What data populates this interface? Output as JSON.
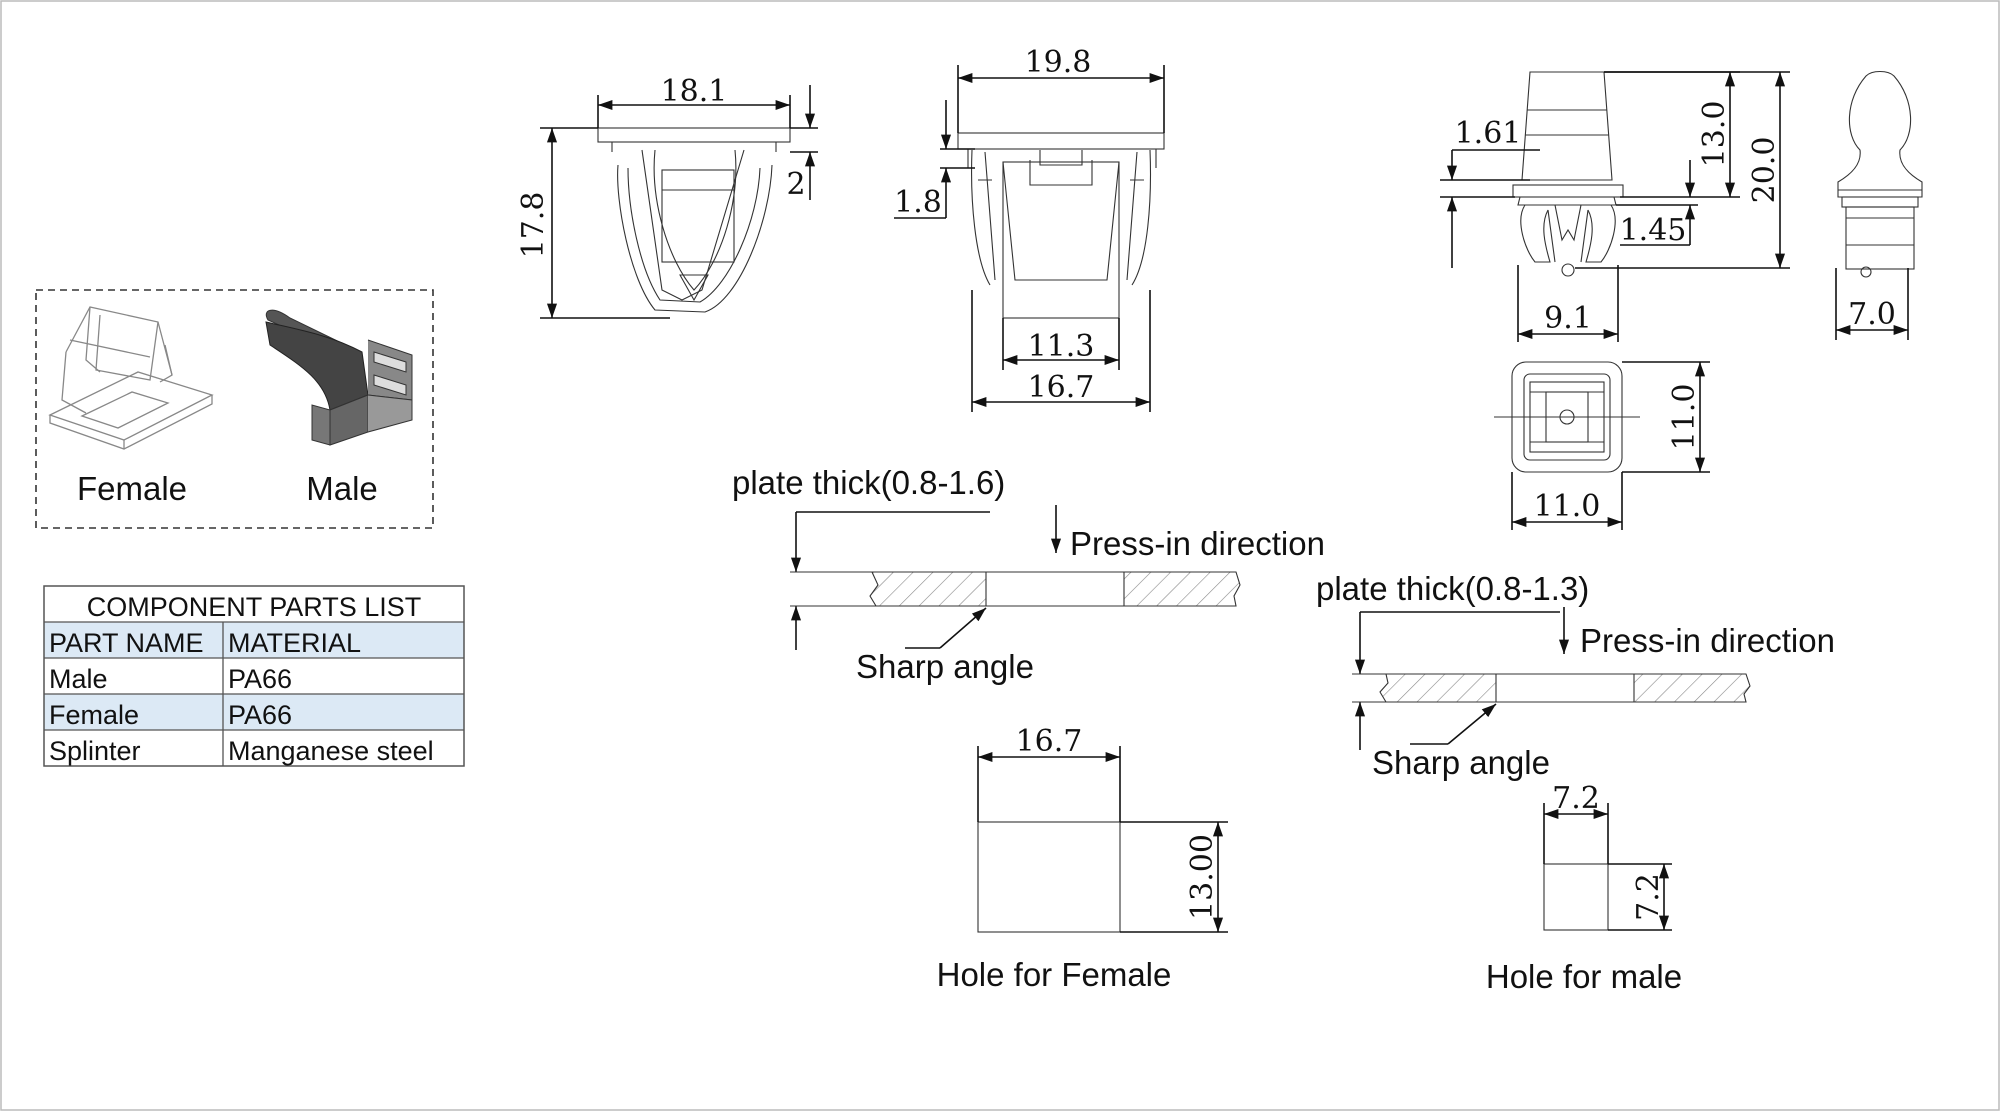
{
  "legend_box": {
    "female_label": "Female",
    "male_label": "Male"
  },
  "parts_table": {
    "title": "COMPONENT PARTS LIST",
    "headers": [
      "PART NAME",
      "MATERIAL"
    ],
    "rows": [
      {
        "name": "Male",
        "material": "PA66"
      },
      {
        "name": "Female",
        "material": "PA66"
      },
      {
        "name": "Splinter",
        "material": "Manganese steel"
      }
    ],
    "header_color": "#dce9f5"
  },
  "dimensions": {
    "female_front_width": "18.1",
    "female_front_height": "17.8",
    "female_flange": "2",
    "female_side_width": "19.8",
    "female_side_flange": "1.8",
    "female_side_inner": "11.3",
    "female_side_base": "16.7",
    "male_head_step": "1.61",
    "male_upper": "13.0",
    "male_total": "20.0",
    "male_step": "1.45",
    "male_width": "9.1",
    "male_side_width": "7.0",
    "male_top_height": "11.0",
    "male_top_width": "11.0",
    "hole_female_width": "16.7",
    "hole_female_height": "13.00",
    "hole_male_width": "7.2",
    "hole_male_height": "7.2"
  },
  "install_female": {
    "plate_label": "plate thick(0.8-1.6)",
    "direction_label": "Press-in direction",
    "angle_label": "Sharp angle",
    "hole_label": "Hole for Female"
  },
  "install_male": {
    "plate_label": "plate thick(0.8-1.3)",
    "direction_label": "Press-in direction",
    "angle_label": "Sharp angle",
    "hole_label": "Hole for male"
  }
}
